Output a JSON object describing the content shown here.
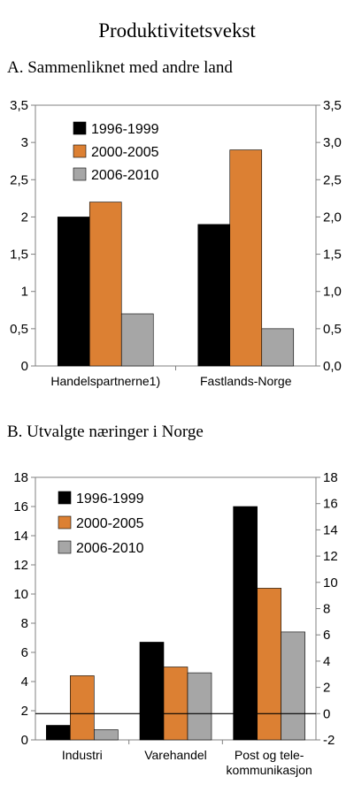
{
  "title": "Produktivitetsvekst",
  "chart_data": [
    {
      "type": "bar",
      "title": "A.  Sammenliknet med andre land",
      "categories": [
        "Handelspartnerne1)",
        "Fastlands-Norge"
      ],
      "series": [
        {
          "name": "1996-1999",
          "color": "#000000",
          "values": [
            2.0,
            1.9
          ]
        },
        {
          "name": "2000-2005",
          "color": "#dc8033",
          "values": [
            2.2,
            2.9
          ]
        },
        {
          "name": "2006-2010",
          "color": "#a6a6a6",
          "values": [
            0.7,
            0.5
          ]
        }
      ],
      "ylim": [
        0,
        3.5
      ],
      "left_ticks": [
        "0",
        "0,5",
        "1",
        "1,5",
        "2",
        "2,5",
        "3",
        "3,5"
      ],
      "right_ticks": [
        "0,0",
        "0,5",
        "1,0",
        "1,5",
        "2,0",
        "2,5",
        "3,0",
        "3,5"
      ],
      "legend_position": "top-left",
      "grid": false
    },
    {
      "type": "bar",
      "title": "B.  Utvalgte næringer i Norge",
      "categories": [
        "Industri",
        "Varehandel",
        "Post og tele-\nkommunikasjon"
      ],
      "series": [
        {
          "name": "1996-1999",
          "color": "#000000",
          "values": [
            1.0,
            6.7,
            16.0
          ]
        },
        {
          "name": "2000-2005",
          "color": "#dc8033",
          "values": [
            4.4,
            5.0,
            10.4
          ]
        },
        {
          "name": "2006-2010",
          "color": "#a6a6a6",
          "values": [
            0.7,
            4.6,
            7.4
          ]
        }
      ],
      "ylim": [
        0,
        18
      ],
      "left_ticks": [
        "0",
        "2",
        "4",
        "6",
        "8",
        "10",
        "12",
        "14",
        "16",
        "18"
      ],
      "right_ticks": [
        "-2",
        "0",
        "2",
        "4",
        "6",
        "8",
        "10",
        "12",
        "14",
        "16",
        "18"
      ],
      "right_ylim": [
        -2,
        18
      ],
      "reference_line_right_value": 0,
      "legend_position": "top-left",
      "grid": false
    }
  ]
}
